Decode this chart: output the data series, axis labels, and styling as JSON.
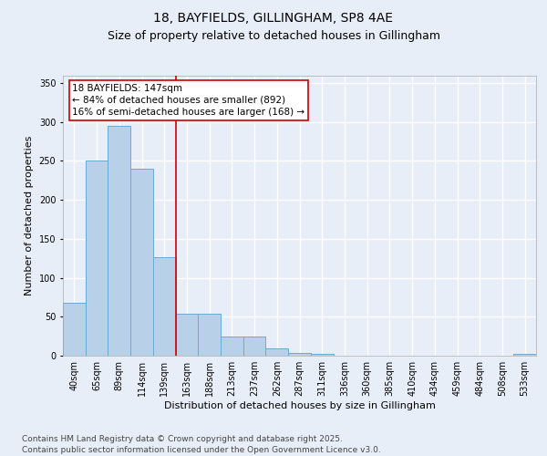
{
  "title_line1": "18, BAYFIELDS, GILLINGHAM, SP8 4AE",
  "title_line2": "Size of property relative to detached houses in Gillingham",
  "xlabel": "Distribution of detached houses by size in Gillingham",
  "ylabel": "Number of detached properties",
  "categories": [
    "40sqm",
    "65sqm",
    "89sqm",
    "114sqm",
    "139sqm",
    "163sqm",
    "188sqm",
    "213sqm",
    "237sqm",
    "262sqm",
    "287sqm",
    "311sqm",
    "336sqm",
    "360sqm",
    "385sqm",
    "410sqm",
    "434sqm",
    "459sqm",
    "484sqm",
    "508sqm",
    "533sqm"
  ],
  "values": [
    68,
    250,
    295,
    240,
    127,
    54,
    54,
    25,
    25,
    9,
    4,
    2,
    0,
    0,
    0,
    0,
    0,
    0,
    0,
    0,
    2
  ],
  "bar_color": "#b8d0e8",
  "bar_edge_color": "#6aaad4",
  "vline_pos": 4.5,
  "vline_color": "#cc0000",
  "annotation_text": "18 BAYFIELDS: 147sqm\n← 84% of detached houses are smaller (892)\n16% of semi-detached houses are larger (168) →",
  "annotation_box_facecolor": "#ffffff",
  "annotation_box_edgecolor": "#cc0000",
  "ylim": [
    0,
    360
  ],
  "yticks": [
    0,
    50,
    100,
    150,
    200,
    250,
    300,
    350
  ],
  "background_color": "#e8eef8",
  "plot_bg_color": "#e8eef8",
  "grid_color": "#ffffff",
  "footer_text": "Contains HM Land Registry data © Crown copyright and database right 2025.\nContains public sector information licensed under the Open Government Licence v3.0.",
  "title_fontsize": 10,
  "subtitle_fontsize": 9,
  "axis_label_fontsize": 8,
  "tick_fontsize": 7,
  "annotation_fontsize": 7.5,
  "footer_fontsize": 6.5
}
